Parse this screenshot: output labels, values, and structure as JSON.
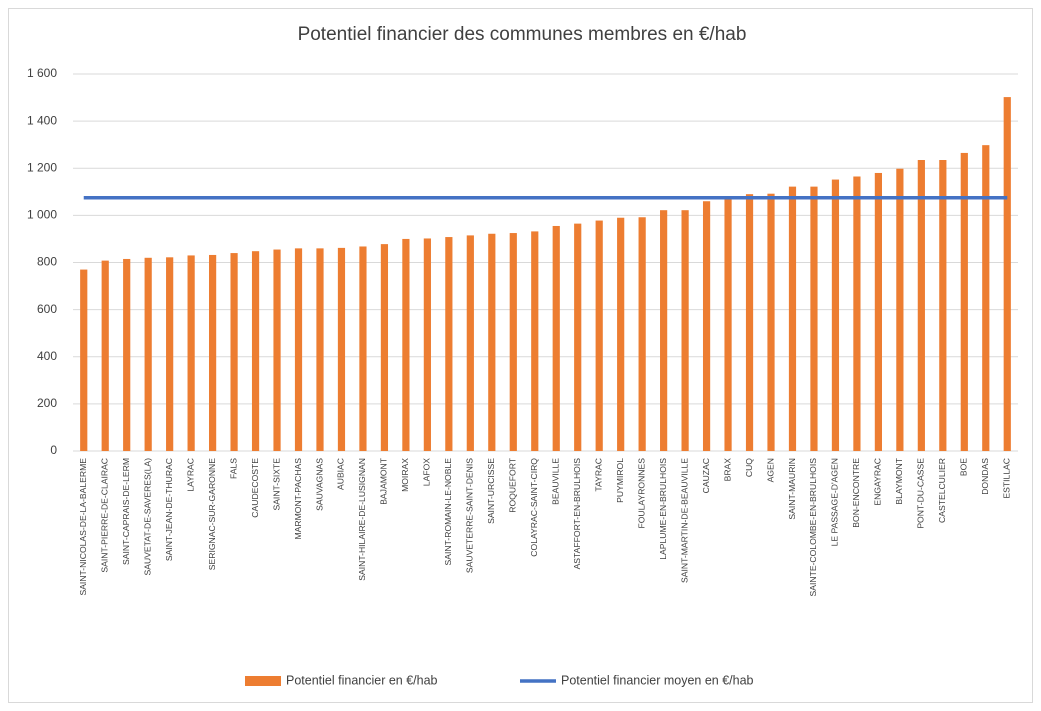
{
  "chart_data": {
    "type": "bar",
    "title": "Potentiel financier des communes membres en €/hab",
    "categories": [
      "SAINT-NICOLAS-DE-LA-BALERME",
      "SAINT-PIERRE-DE-CLAIRAC",
      "SAINT-CAPRAIS-DE-LERM",
      "SAUVETAT-DE-SAVERES(LA)",
      "SAINT-JEAN-DE-THURAC",
      "LAYRAC",
      "SERIGNAC-SUR-GARONNE",
      "FALS",
      "CAUDECOSTE",
      "SAINT-SIXTE",
      "MARMONT-PACHAS",
      "SAUVAGNAS",
      "AUBIAC",
      "SAINT-HILAIRE-DE-LUSIGNAN",
      "BAJAMONT",
      "MOIRAX",
      "LAFOX",
      "SAINT-ROMAIN-LE-NOBLE",
      "SAUVETERRE-SAINT-DENIS",
      "SAINT-URCISSE",
      "ROQUEFORT",
      "COLAYRAC-SAINT-CIRQ",
      "BEAUVILLE",
      "ASTAFFORT-EN-BRULHOIS",
      "TAYRAC",
      "PUYMIROL",
      "FOULAYRONNES",
      "LAPLUME-EN-BRULHOIS",
      "SAINT-MARTIN-DE-BEAUVILLE",
      "CAUZAC",
      "BRAX",
      "CUQ",
      "AGEN",
      "SAINT-MAURIN",
      "SAINTE-COLOMBE-EN-BRULHOIS",
      "LE PASSAGE-D'AGEN",
      "BON-ENCONTRE",
      "ENGAYRAC",
      "BLAYMONT",
      "PONT-DU-CASSE",
      "CASTELCULIER",
      "BOE",
      "DONDAS",
      "ESTILLAC"
    ],
    "series": [
      {
        "name": "Potentiel financier en €/hab",
        "color": "#ed7d31",
        "values": [
          770,
          808,
          815,
          820,
          822,
          830,
          832,
          840,
          848,
          855,
          860,
          860,
          862,
          868,
          878,
          900,
          902,
          908,
          915,
          922,
          925,
          932,
          955,
          965,
          978,
          990,
          992,
          1022,
          1022,
          1060,
          1068,
          1090,
          1092,
          1122,
          1122,
          1152,
          1165,
          1180,
          1198,
          1235,
          1235,
          1265,
          1298,
          1502
        ]
      }
    ],
    "reference_line": {
      "name": "Potentiel financier moyen en €/hab",
      "color": "#4472c4",
      "value": 1075
    },
    "ylim": [
      0,
      1600
    ],
    "yticks": [
      0,
      200,
      400,
      600,
      800,
      {
        "value": 1000,
        "label": "1 000"
      },
      {
        "value": 1200,
        "label": "1 200"
      },
      {
        "value": 1400,
        "label": "1 400"
      },
      {
        "value": 1600,
        "label": "1 600"
      }
    ],
    "grid": true,
    "legend": "bottom"
  }
}
